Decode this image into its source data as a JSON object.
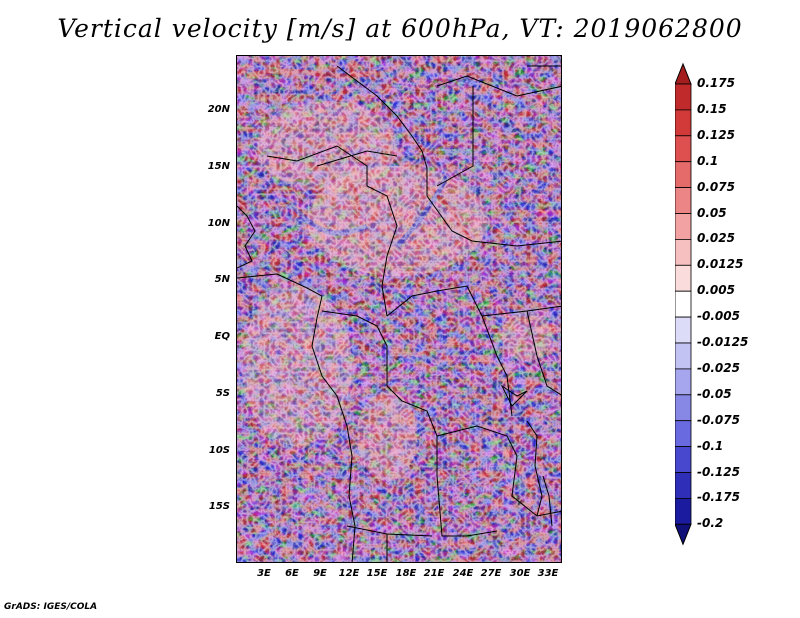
{
  "title": "Vertical velocity [m/s] at 600hPa, VT: 2019062800",
  "credit": "GrADS: IGES/COLA",
  "map": {
    "lat_labels": [
      "20N",
      "15N",
      "10N",
      "5N",
      "EQ",
      "5S",
      "10S",
      "15S"
    ],
    "lon_labels": [
      "3E",
      "6E",
      "9E",
      "12E",
      "15E",
      "18E",
      "21E",
      "24E",
      "27E",
      "30E",
      "33E"
    ],
    "field": "vertical velocity",
    "level": "600hPa",
    "valid_time": "2019062800"
  },
  "colorbar": {
    "labels": [
      "0.175",
      "0.15",
      "0.125",
      "0.1",
      "0.075",
      "0.05",
      "0.025",
      "0.0125",
      "0.005",
      "-0.005",
      "-0.0125",
      "-0.025",
      "-0.05",
      "-0.075",
      "-0.1",
      "-0.125",
      "-0.175",
      "-0.2"
    ],
    "colors": [
      "#a51e1e",
      "#c02a2a",
      "#d23a3a",
      "#de5050",
      "#e56a6a",
      "#ec8585",
      "#f2a2a2",
      "#f6c0c0",
      "#fadcdc",
      "#ffffff",
      "#dcdcf8",
      "#c2c2f3",
      "#a6a6ee",
      "#8787e6",
      "#6a6ae0",
      "#4848cf",
      "#2e2eb8",
      "#1b1ba0",
      "#101078"
    ]
  }
}
